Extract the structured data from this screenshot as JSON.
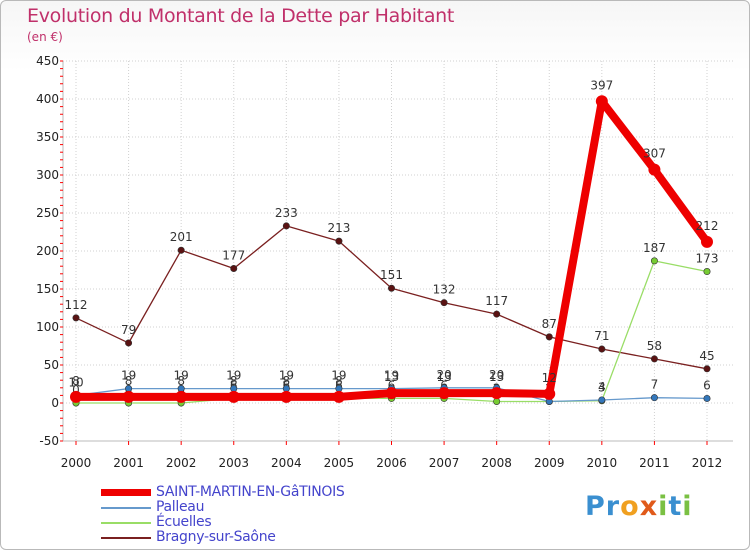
{
  "title": "Evolution du Montant de la Dette par Habitant",
  "unit": "(en €)",
  "colors": {
    "title": "#c0306a",
    "axis_text": "#222222",
    "legend_text": "#4444cc",
    "grid": "#d0d0d0",
    "tick": "#ff0000"
  },
  "chart_data": {
    "type": "line",
    "title": "Evolution du Montant de la Dette par Habitant",
    "ylabel": "(en €)",
    "xlabel": "",
    "ylim": [
      -50,
      450
    ],
    "yticks": [
      -50,
      0,
      50,
      100,
      150,
      200,
      250,
      300,
      350,
      400,
      450
    ],
    "categories": [
      "2000",
      "2001",
      "2002",
      "2003",
      "2004",
      "2005",
      "2006",
      "2007",
      "2008",
      "2009",
      "2010",
      "2011",
      "2012"
    ],
    "series": [
      {
        "name": "Bragny-sur-Saône",
        "color": "#7a2020",
        "marker": "#5a1212",
        "thick": false,
        "values": [
          112,
          79,
          201,
          177,
          233,
          213,
          151,
          132,
          117,
          87,
          71,
          58,
          45
        ],
        "labels": [
          "112",
          "79",
          "201",
          "177",
          "233",
          "213",
          "151",
          "132",
          "117",
          "87",
          "71",
          "58",
          "45"
        ]
      },
      {
        "name": "Écuelles",
        "color": "#99dd66",
        "marker": "#77cc33",
        "thick": false,
        "values": [
          0,
          0,
          0,
          6,
          6,
          6,
          6,
          6,
          2,
          2,
          3,
          187,
          173
        ],
        "labels": [
          "0",
          "0",
          "0",
          "6",
          "6",
          "6",
          "6",
          "6",
          "2",
          "2",
          "3",
          "187",
          "173"
        ]
      },
      {
        "name": "Palleau",
        "color": "#6699cc",
        "marker": "#3377bb",
        "thick": false,
        "values": [
          10,
          19,
          19,
          19,
          19,
          19,
          19,
          20,
          20,
          2,
          4,
          7,
          6
        ],
        "labels": [
          "10",
          "19",
          "19",
          "19",
          "19",
          "19",
          "19",
          "20",
          "20",
          "2",
          "4",
          "7",
          "6"
        ]
      },
      {
        "name": "SAINT-MARTIN-EN-GâTINOIS",
        "color": "#ee0000",
        "marker": "#ee0000",
        "thick": true,
        "values": [
          8,
          8,
          8,
          8,
          8,
          8,
          13,
          13,
          13,
          12,
          397,
          307,
          212
        ],
        "labels": [
          "8",
          "8",
          "8",
          "8",
          "8",
          "8",
          "13",
          "13",
          "13",
          "12",
          "397",
          "307",
          "212"
        ]
      }
    ]
  },
  "legend": {
    "items": [
      {
        "label": "SAINT-MARTIN-EN-GâTINOIS",
        "color": "#ee0000",
        "thick": true
      },
      {
        "label": "Palleau",
        "color": "#6699cc",
        "thick": false
      },
      {
        "label": "Écuelles",
        "color": "#99dd66",
        "thick": false
      },
      {
        "label": "Bragny-sur-Saône",
        "color": "#7a2020",
        "thick": false
      }
    ]
  },
  "logo": {
    "letters": [
      {
        "ch": "P",
        "color": "#3a8fd0"
      },
      {
        "ch": "r",
        "color": "#3a8fd0"
      },
      {
        "ch": "o",
        "color": "#f0a020"
      },
      {
        "ch": "x",
        "color": "#e05a1a"
      },
      {
        "ch": "i",
        "color": "#7ac043"
      },
      {
        "ch": "t",
        "color": "#3a8fd0"
      },
      {
        "ch": "i",
        "color": "#7ac043"
      }
    ]
  }
}
